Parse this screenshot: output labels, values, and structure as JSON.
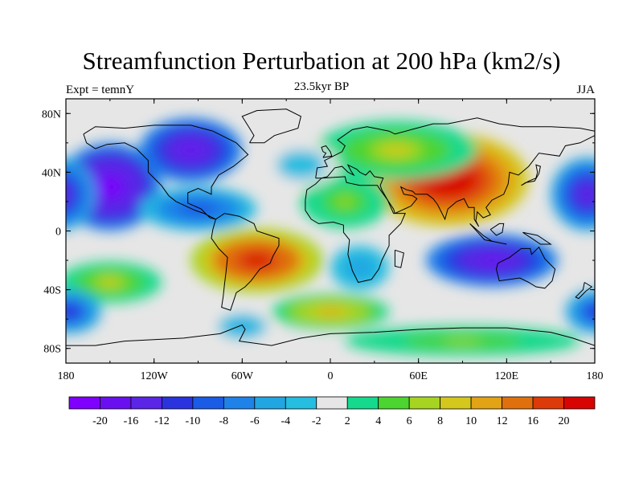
{
  "header": {
    "title": "Streamfunction Perturbation at 200 hPa (km2/s)",
    "subtitle": "23.5kyr BP",
    "left_label": "Expt = temnY",
    "right_label": "JJA"
  },
  "map": {
    "projection": "cylindrical-equidistant",
    "lon_range": [
      -180,
      180
    ],
    "lat_range": [
      -90,
      90
    ],
    "lat_ticks": [
      {
        "value": 80,
        "label": "80N"
      },
      {
        "value": 40,
        "label": "40N"
      },
      {
        "value": 0,
        "label": "0"
      },
      {
        "value": -40,
        "label": "40S"
      },
      {
        "value": -80,
        "label": "80S"
      }
    ],
    "lon_ticks": [
      {
        "value": -180,
        "label": "180"
      },
      {
        "value": -120,
        "label": "120W"
      },
      {
        "value": -60,
        "label": "60W"
      },
      {
        "value": 0,
        "label": "0"
      },
      {
        "value": 60,
        "label": "60E"
      },
      {
        "value": 120,
        "label": "120E"
      },
      {
        "value": 180,
        "label": "180"
      }
    ],
    "field_centers": [
      {
        "lon": 80,
        "lat": 35,
        "value": 23,
        "rx": 55,
        "ry": 32
      },
      {
        "lon": 45,
        "lat": 55,
        "value": 8,
        "rx": 55,
        "ry": 20
      },
      {
        "lon": 10,
        "lat": 20,
        "value": 6,
        "rx": 30,
        "ry": 18
      },
      {
        "lon": -50,
        "lat": -20,
        "value": 20,
        "rx": 45,
        "ry": 22
      },
      {
        "lon": -150,
        "lat": -35,
        "value": 8,
        "rx": 35,
        "ry": 14
      },
      {
        "lon": 0,
        "lat": -55,
        "value": 10,
        "rx": 40,
        "ry": 12
      },
      {
        "lon": 90,
        "lat": -75,
        "value": 6,
        "rx": 80,
        "ry": 10
      },
      {
        "lon": -150,
        "lat": 30,
        "value": -21,
        "rx": 35,
        "ry": 30
      },
      {
        "lon": -95,
        "lat": 55,
        "value": -18,
        "rx": 35,
        "ry": 22
      },
      {
        "lon": -90,
        "lat": 15,
        "value": -10,
        "rx": 40,
        "ry": 15
      },
      {
        "lon": 110,
        "lat": -20,
        "value": -18,
        "rx": 45,
        "ry": 18
      },
      {
        "lon": 175,
        "lat": 25,
        "value": -14,
        "rx": 25,
        "ry": 25
      },
      {
        "lon": -178,
        "lat": -55,
        "value": -12,
        "rx": 22,
        "ry": 15
      },
      {
        "lon": -60,
        "lat": -65,
        "value": -5,
        "rx": 20,
        "ry": 10
      },
      {
        "lon": 20,
        "lat": -25,
        "value": -6,
        "rx": 20,
        "ry": 15
      },
      {
        "lon": -20,
        "lat": 45,
        "value": -4,
        "rx": 25,
        "ry": 15
      }
    ]
  },
  "colorbar": {
    "colors": [
      "#7f00ff",
      "#6a10f0",
      "#5a25e6",
      "#2a33dd",
      "#1a5ce6",
      "#1f82e8",
      "#21a6e2",
      "#25bde0",
      "#e6e6e6",
      "#15d98c",
      "#4cd430",
      "#a6d421",
      "#d4c81d",
      "#e2a314",
      "#e0700e",
      "#dc3a08",
      "#d80404"
    ],
    "labels": [
      "-20",
      "-16",
      "-12",
      "-10",
      "-8",
      "-6",
      "-4",
      "-2",
      "2",
      "4",
      "6",
      "8",
      "10",
      "12",
      "16",
      "20"
    ],
    "bounds": [
      -20,
      -16,
      -12,
      -10,
      -8,
      -6,
      -4,
      -2,
      2,
      4,
      6,
      8,
      10,
      12,
      16,
      20
    ]
  }
}
